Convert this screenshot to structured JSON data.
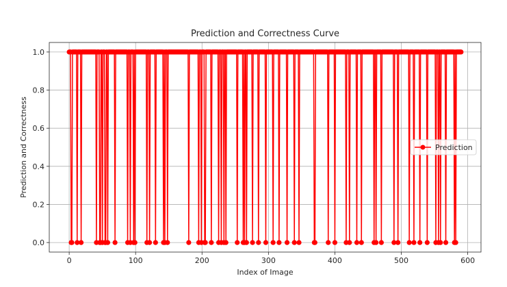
{
  "chart_data": {
    "type": "line",
    "title": "Prediction and Correctness Curve",
    "xlabel": "Index of Image",
    "ylabel": "Prediction and Correctness",
    "xlim": [
      -30,
      620
    ],
    "ylim": [
      -0.05,
      1.05
    ],
    "xticks": [
      0,
      100,
      200,
      300,
      400,
      500,
      600
    ],
    "yticks": [
      0.0,
      0.2,
      0.4,
      0.6,
      0.8,
      1.0
    ],
    "ytick_labels": [
      "0.0",
      "0.2",
      "0.4",
      "0.6",
      "0.8",
      "1.0"
    ],
    "grid": true,
    "legend_position": "center-right",
    "series": [
      {
        "name": "Prediction",
        "color": "#ff0000",
        "marker": "circle",
        "x_start": 0,
        "x_end": 590,
        "zero_indices": [
          3,
          4,
          12,
          18,
          41,
          46,
          47,
          50,
          54,
          55,
          58,
          69,
          88,
          92,
          97,
          99,
          117,
          121,
          130,
          142,
          144,
          148,
          180,
          195,
          199,
          204,
          205,
          214,
          225,
          229,
          233,
          236,
          253,
          262,
          264,
          267,
          276,
          285,
          296,
          307,
          316,
          328,
          339,
          346,
          369,
          370,
          390,
          400,
          417,
          422,
          433,
          440,
          459,
          462,
          470,
          489,
          495,
          512,
          519,
          528,
          539,
          552,
          556,
          559,
          567,
          580,
          582
        ],
        "default_value": 1
      }
    ]
  }
}
